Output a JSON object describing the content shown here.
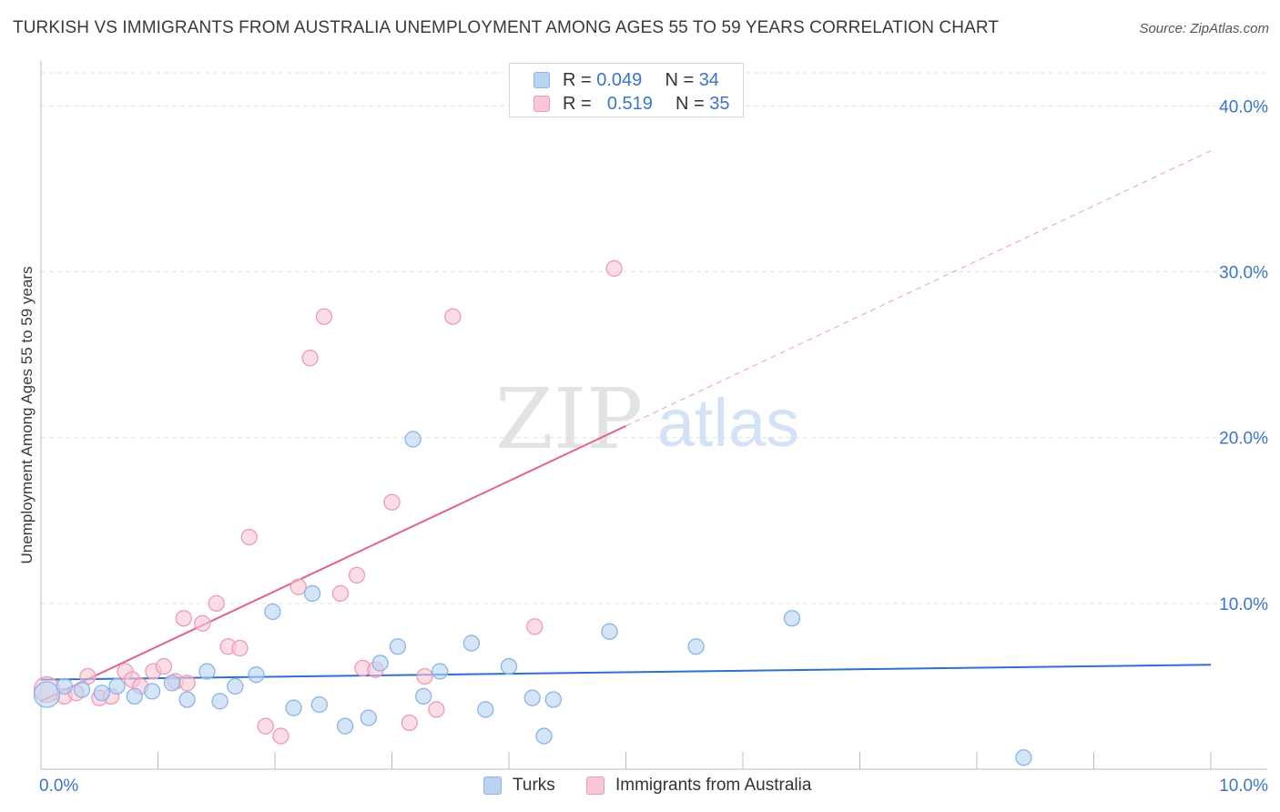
{
  "title": "TURKISH VS IMMIGRANTS FROM AUSTRALIA UNEMPLOYMENT AMONG AGES 55 TO 59 YEARS CORRELATION CHART",
  "source": "Source: ZipAtlas.com",
  "watermark": {
    "part1": "ZIP",
    "part2": "atlas"
  },
  "legend": {
    "rows": [
      {
        "r_label": "R =",
        "r_value": "0.049",
        "n_label": "N =",
        "n_value": "34"
      },
      {
        "r_label": "R =",
        "r_value": "0.519",
        "n_label": "N =",
        "n_value": "35"
      }
    ]
  },
  "bottom_legend": {
    "series1": "Turks",
    "series2": "Immigrants from Australia"
  },
  "colors": {
    "turks_fill": "#b9d3f3",
    "turks_stroke": "#8ab4e8",
    "turks_line": "#2f6fcf",
    "aus_fill": "#f8c6d6",
    "aus_stroke": "#ef9ab6",
    "aus_line": "#e0628e",
    "tick_label": "#3b74c9",
    "grid": "#e2e2e2"
  },
  "chart_data": {
    "type": "scatter",
    "title": "TURKISH VS IMMIGRANTS FROM AUSTRALIA UNEMPLOYMENT AMONG AGES 55 TO 59 YEARS CORRELATION CHART",
    "xlabel": "",
    "ylabel": "Unemployment Among Ages 55 to 59 years",
    "xlim": [
      0,
      10
    ],
    "ylim": [
      0,
      42
    ],
    "x_tick_labels": [
      "0.0%",
      "10.0%"
    ],
    "y_ticks": [
      10,
      20,
      30,
      40
    ],
    "y_tick_labels": [
      "10.0%",
      "20.0%",
      "30.0%",
      "40.0%"
    ],
    "grid": true,
    "series": [
      {
        "name": "Turks",
        "R": 0.049,
        "N": 34,
        "points": [
          {
            "x": 0.05,
            "y": 4.5,
            "big": true
          },
          {
            "x": 0.2,
            "y": 5.0
          },
          {
            "x": 0.35,
            "y": 4.8
          },
          {
            "x": 0.52,
            "y": 4.6
          },
          {
            "x": 0.65,
            "y": 5.0
          },
          {
            "x": 0.8,
            "y": 4.4
          },
          {
            "x": 0.95,
            "y": 4.7
          },
          {
            "x": 1.12,
            "y": 5.2
          },
          {
            "x": 1.25,
            "y": 4.2
          },
          {
            "x": 1.42,
            "y": 5.9
          },
          {
            "x": 1.53,
            "y": 4.1
          },
          {
            "x": 1.66,
            "y": 5.0
          },
          {
            "x": 1.84,
            "y": 5.7
          },
          {
            "x": 1.98,
            "y": 9.5
          },
          {
            "x": 2.16,
            "y": 3.7
          },
          {
            "x": 2.32,
            "y": 10.6
          },
          {
            "x": 2.38,
            "y": 3.9
          },
          {
            "x": 2.6,
            "y": 2.6
          },
          {
            "x": 2.8,
            "y": 3.1
          },
          {
            "x": 2.9,
            "y": 6.4
          },
          {
            "x": 3.05,
            "y": 7.4
          },
          {
            "x": 3.18,
            "y": 19.9
          },
          {
            "x": 3.27,
            "y": 4.4
          },
          {
            "x": 3.41,
            "y": 5.9
          },
          {
            "x": 3.68,
            "y": 7.6
          },
          {
            "x": 3.8,
            "y": 3.6
          },
          {
            "x": 4.0,
            "y": 6.2
          },
          {
            "x": 4.2,
            "y": 4.3
          },
          {
            "x": 4.3,
            "y": 2.0
          },
          {
            "x": 4.38,
            "y": 4.2
          },
          {
            "x": 4.86,
            "y": 8.3
          },
          {
            "x": 5.6,
            "y": 7.4
          },
          {
            "x": 6.42,
            "y": 9.1
          },
          {
            "x": 8.4,
            "y": 0.7
          }
        ],
        "trend": {
          "x": [
            0,
            10
          ],
          "y": [
            5.4,
            6.3
          ]
        }
      },
      {
        "name": "Immigrants from Australia",
        "R": 0.519,
        "N": 35,
        "points": [
          {
            "x": 0.05,
            "y": 4.8,
            "big": true
          },
          {
            "x": 0.2,
            "y": 4.4
          },
          {
            "x": 0.3,
            "y": 4.6
          },
          {
            "x": 0.4,
            "y": 5.6
          },
          {
            "x": 0.5,
            "y": 4.3
          },
          {
            "x": 0.6,
            "y": 4.4
          },
          {
            "x": 0.72,
            "y": 5.9
          },
          {
            "x": 0.78,
            "y": 5.4
          },
          {
            "x": 0.85,
            "y": 5.0
          },
          {
            "x": 0.96,
            "y": 5.9
          },
          {
            "x": 1.05,
            "y": 6.2
          },
          {
            "x": 1.15,
            "y": 5.3
          },
          {
            "x": 1.25,
            "y": 5.2
          },
          {
            "x": 1.38,
            "y": 8.8
          },
          {
            "x": 1.5,
            "y": 10.0
          },
          {
            "x": 1.6,
            "y": 7.4
          },
          {
            "x": 1.7,
            "y": 7.3
          },
          {
            "x": 1.78,
            "y": 14.0
          },
          {
            "x": 1.92,
            "y": 2.6
          },
          {
            "x": 2.05,
            "y": 2.0
          },
          {
            "x": 2.2,
            "y": 11.0
          },
          {
            "x": 2.3,
            "y": 24.8
          },
          {
            "x": 2.42,
            "y": 27.3
          },
          {
            "x": 2.56,
            "y": 10.6
          },
          {
            "x": 2.7,
            "y": 11.7
          },
          {
            "x": 2.75,
            "y": 6.1
          },
          {
            "x": 2.86,
            "y": 6.0
          },
          {
            "x": 3.0,
            "y": 16.1
          },
          {
            "x": 3.15,
            "y": 2.8
          },
          {
            "x": 3.28,
            "y": 5.6
          },
          {
            "x": 3.38,
            "y": 3.6
          },
          {
            "x": 3.52,
            "y": 27.3
          },
          {
            "x": 4.22,
            "y": 8.6
          },
          {
            "x": 4.9,
            "y": 30.2
          },
          {
            "x": 1.22,
            "y": 9.1
          }
        ],
        "trend": {
          "x": [
            0,
            5
          ],
          "y": [
            4.1,
            20.7
          ],
          "dashed_extension": {
            "x": [
              5,
              10
            ],
            "y": [
              20.7,
              37.3
            ]
          }
        }
      }
    ]
  }
}
